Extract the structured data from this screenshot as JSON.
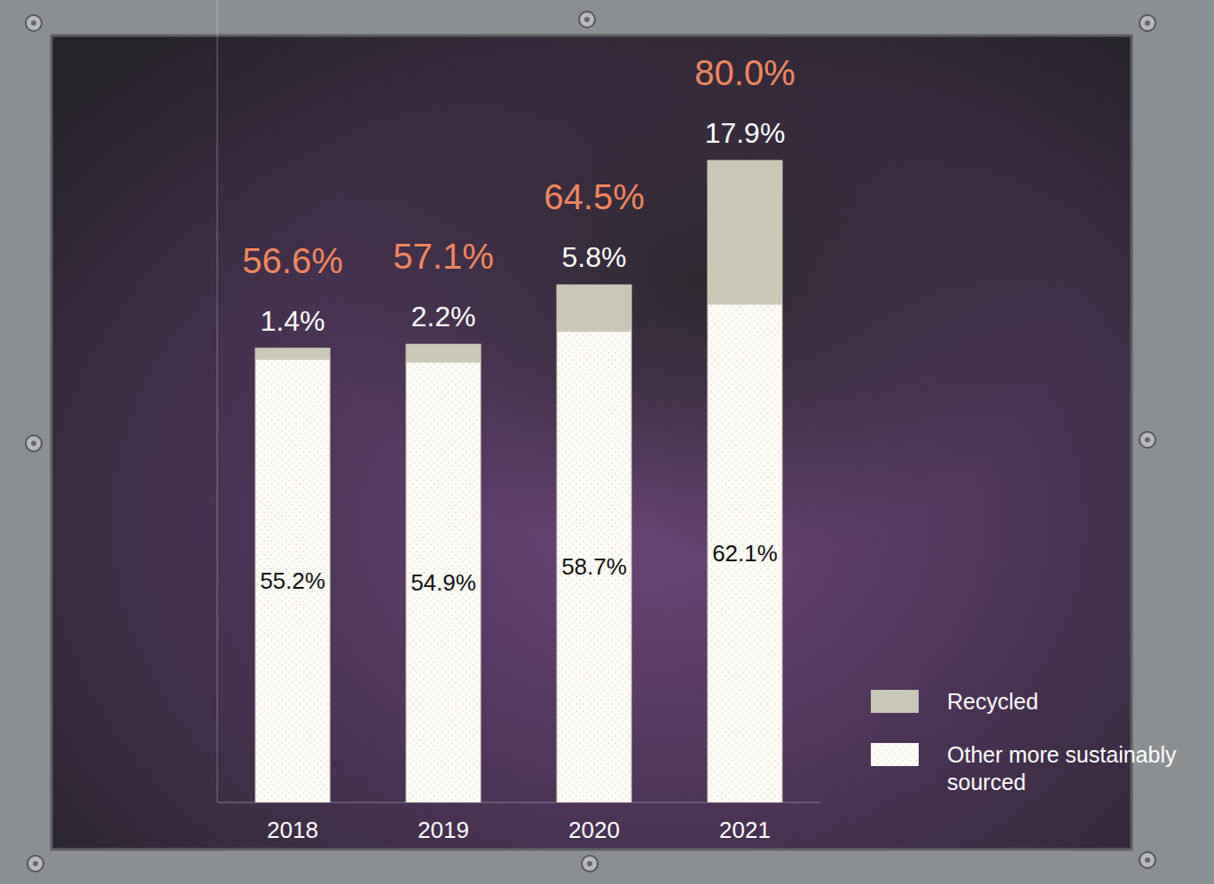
{
  "chart_data": {
    "type": "bar",
    "stacked": true,
    "data_labels": true,
    "tick_labels": "x",
    "legend": "lower right",
    "categories": [
      "2018",
      "2019",
      "2020",
      "2021"
    ],
    "ylim": [
      0,
      100
    ],
    "series": [
      {
        "name": "Other more sustainably sourced",
        "color": "#fbfaf5",
        "values": [
          55.2,
          54.9,
          58.7,
          62.1
        ],
        "value_labels": [
          "55.2%",
          "54.9%",
          "58.7%",
          "62.1%"
        ]
      },
      {
        "name": "Recycled",
        "color": "#c9c7b5",
        "values": [
          1.4,
          2.2,
          5.8,
          17.9
        ],
        "value_labels": [
          "1.4%",
          "2.2%",
          "5.8%",
          "17.9%"
        ]
      }
    ],
    "totals": {
      "color": "#f0875f",
      "values": [
        56.6,
        57.1,
        64.5,
        80.0
      ],
      "value_labels": [
        "56.6%",
        "57.1%",
        "64.5%",
        "80.0%"
      ]
    }
  }
}
